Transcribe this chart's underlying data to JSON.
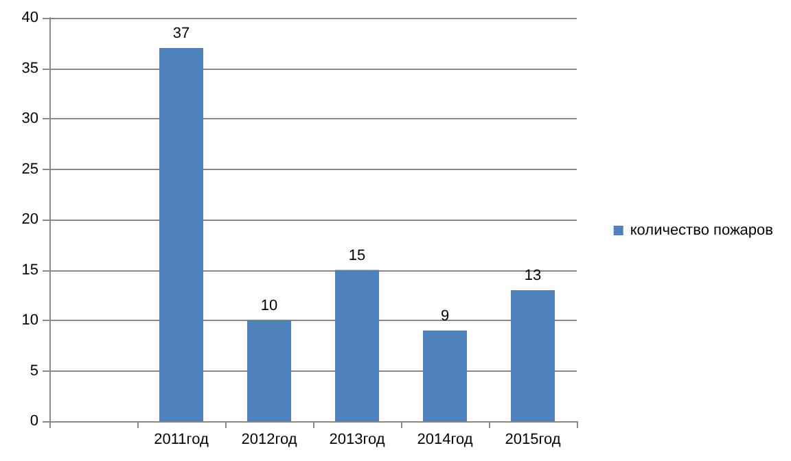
{
  "chart_data": {
    "type": "bar",
    "categories": [
      null,
      "2011год",
      "2012год",
      "2013год",
      "2014год",
      "2015год"
    ],
    "series": [
      {
        "name": "количество пожаров",
        "color": "#4f81bd",
        "values": [
          null,
          37,
          10,
          15,
          9,
          13
        ]
      }
    ],
    "ylim": [
      0,
      40
    ],
    "yticks": [
      0,
      5,
      10,
      15,
      20,
      25,
      30,
      35,
      40
    ],
    "grid": "y",
    "legend": "right",
    "data_labels": true
  }
}
